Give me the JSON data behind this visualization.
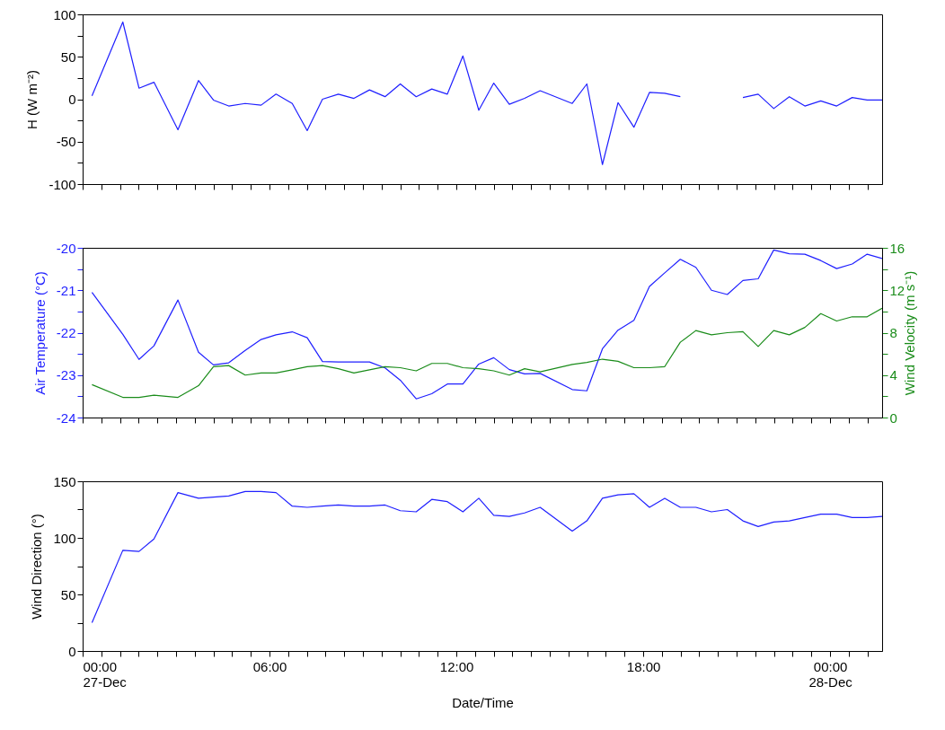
{
  "chart_data": [
    {
      "type": "line",
      "ylabel": "H (W m⁻²)",
      "tick_labels": "y",
      "x": [
        0.3,
        1.29,
        1.81,
        2.29,
        3.06,
        3.72,
        4.2,
        4.69,
        5.22,
        5.73,
        6.21,
        6.73,
        7.21,
        7.7,
        8.21,
        8.71,
        9.21,
        9.71,
        10.2,
        10.71,
        11.21,
        11.71,
        12.21,
        12.72,
        13.2,
        13.7,
        14.19,
        14.69,
        15.72,
        16.19,
        16.69,
        17.19,
        17.7,
        18.2,
        18.69,
        19.19,
        19.69,
        20.19,
        20.7,
        21.2,
        21.69,
        22.19,
        22.69,
        23.19,
        23.7,
        24.21,
        24.71,
        25.19,
        25.67
      ],
      "series": [
        {
          "color": "#1f1fff",
          "line_style": "solid",
          "values": [
            4,
            91,
            13,
            20,
            -36,
            22,
            -1,
            -8,
            -5,
            -7,
            6,
            -5,
            -37,
            0,
            6,
            1,
            11,
            3,
            18,
            3,
            12,
            6,
            51,
            -13,
            19,
            -6,
            1,
            10,
            -5,
            18,
            -77,
            -4,
            -33,
            8,
            7,
            3,
            null,
            null,
            null,
            2,
            6,
            -11,
            3,
            -8,
            -2,
            -8,
            2,
            -1,
            -1
          ]
        }
      ],
      "xlim": [
        0,
        25.67
      ],
      "xticks": [
        {
          "value": 0,
          "label": null
        },
        {
          "value": 0.6,
          "label": null
        },
        {
          "value": 1.2,
          "label": null
        },
        {
          "value": 1.8,
          "label": null
        },
        {
          "value": 2.4,
          "label": null
        },
        {
          "value": 3,
          "label": null
        },
        {
          "value": 3.6,
          "label": null
        },
        {
          "value": 4.2,
          "label": null
        },
        {
          "value": 4.8,
          "label": null
        },
        {
          "value": 5.4,
          "label": null
        },
        {
          "value": 6,
          "label": null
        },
        {
          "value": 6.6,
          "label": null
        },
        {
          "value": 7.2,
          "label": null
        },
        {
          "value": 7.8,
          "label": null
        },
        {
          "value": 8.4,
          "label": null
        },
        {
          "value": 9,
          "label": null
        },
        {
          "value": 9.6,
          "label": null
        },
        {
          "value": 10.2,
          "label": null
        },
        {
          "value": 10.8,
          "label": null
        },
        {
          "value": 11.4,
          "label": null
        },
        {
          "value": 12,
          "label": null
        },
        {
          "value": 12.6,
          "label": null
        },
        {
          "value": 13.2,
          "label": null
        },
        {
          "value": 13.8,
          "label": null
        },
        {
          "value": 14.4,
          "label": null
        },
        {
          "value": 15,
          "label": null
        },
        {
          "value": 15.6,
          "label": null
        },
        {
          "value": 16.2,
          "label": null
        },
        {
          "value": 16.8,
          "label": null
        },
        {
          "value": 17.4,
          "label": null
        },
        {
          "value": 18,
          "label": null
        },
        {
          "value": 18.6,
          "label": null
        },
        {
          "value": 19.2,
          "label": null
        },
        {
          "value": 19.8,
          "label": null
        },
        {
          "value": 20.4,
          "label": null
        },
        {
          "value": 21,
          "label": null
        },
        {
          "value": 21.6,
          "label": null
        },
        {
          "value": 22.2,
          "label": null
        },
        {
          "value": 22.8,
          "label": null
        },
        {
          "value": 23.4,
          "label": null
        },
        {
          "value": 24,
          "label": null
        },
        {
          "value": 24.6,
          "label": null
        },
        {
          "value": 25.2,
          "label": null
        }
      ],
      "ylim": [
        -100,
        100
      ],
      "yticks": [
        -100,
        {
          "value": -75,
          "label": null
        },
        -50,
        {
          "value": -25,
          "label": null
        },
        0,
        {
          "value": 25,
          "label": null
        },
        50,
        {
          "value": 75,
          "label": null
        },
        100
      ]
    },
    {
      "type": "line",
      "ylabel": "Air Temperature (°C)",
      "y2label": "Wind Velocity (m s⁻¹)",
      "tick_labels": "y",
      "x": [
        0.3,
        1.29,
        1.81,
        2.29,
        3.06,
        3.72,
        4.2,
        4.69,
        5.22,
        5.73,
        6.21,
        6.73,
        7.21,
        7.7,
        8.21,
        8.71,
        9.21,
        9.71,
        10.2,
        10.71,
        11.21,
        11.71,
        12.21,
        12.72,
        13.2,
        13.7,
        14.19,
        14.69,
        15.72,
        16.19,
        16.69,
        17.19,
        17.7,
        18.2,
        18.69,
        19.19,
        19.69,
        20.19,
        20.7,
        21.2,
        21.69,
        22.19,
        22.69,
        23.19,
        23.7,
        24.21,
        24.71,
        25.19,
        25.67
      ],
      "series": [
        {
          "color": "#1f1fff",
          "line_style": "solid",
          "values": [
            -21.05,
            -22.04,
            -22.63,
            -22.31,
            -21.23,
            -22.46,
            -22.76,
            -22.71,
            -22.42,
            -22.16,
            -22.05,
            -21.98,
            -22.12,
            -22.68,
            -22.69,
            -22.69,
            -22.69,
            -22.83,
            -23.12,
            -23.56,
            -23.44,
            -23.21,
            -23.21,
            -22.74,
            -22.59,
            -22.87,
            -22.97,
            -22.96,
            -23.34,
            -23.37,
            -22.38,
            -21.94,
            -21.71,
            -20.91,
            -20.59,
            -20.27,
            -20.46,
            -21.0,
            -21.1,
            -20.77,
            -20.73,
            -20.05,
            -20.14,
            -20.15,
            -20.3,
            -20.49,
            -20.38,
            -20.15,
            -20.25
          ]
        },
        {
          "color": "#1a8c1a",
          "axis": "y2",
          "line_style": "solid",
          "values": [
            3.1,
            1.9,
            1.9,
            2.1,
            1.9,
            3.0,
            4.8,
            4.9,
            4.0,
            4.2,
            4.2,
            4.5,
            4.8,
            4.9,
            4.6,
            4.2,
            4.5,
            4.8,
            4.7,
            4.4,
            5.1,
            5.1,
            4.7,
            4.6,
            4.4,
            4.0,
            4.6,
            4.3,
            5.0,
            5.2,
            5.5,
            5.3,
            4.7,
            4.7,
            4.8,
            7.1,
            8.2,
            7.8,
            8.0,
            8.1,
            6.7,
            8.2,
            7.8,
            8.5,
            9.8,
            9.1,
            9.5,
            9.5,
            10.3
          ]
        }
      ],
      "xlim": [
        0,
        25.67
      ],
      "xticks": [
        {
          "value": 0,
          "label": null
        },
        {
          "value": 0.6,
          "label": null
        },
        {
          "value": 1.2,
          "label": null
        },
        {
          "value": 1.8,
          "label": null
        },
        {
          "value": 2.4,
          "label": null
        },
        {
          "value": 3,
          "label": null
        },
        {
          "value": 3.6,
          "label": null
        },
        {
          "value": 4.2,
          "label": null
        },
        {
          "value": 4.8,
          "label": null
        },
        {
          "value": 5.4,
          "label": null
        },
        {
          "value": 6,
          "label": null
        },
        {
          "value": 6.6,
          "label": null
        },
        {
          "value": 7.2,
          "label": null
        },
        {
          "value": 7.8,
          "label": null
        },
        {
          "value": 8.4,
          "label": null
        },
        {
          "value": 9,
          "label": null
        },
        {
          "value": 9.6,
          "label": null
        },
        {
          "value": 10.2,
          "label": null
        },
        {
          "value": 10.8,
          "label": null
        },
        {
          "value": 11.4,
          "label": null
        },
        {
          "value": 12,
          "label": null
        },
        {
          "value": 12.6,
          "label": null
        },
        {
          "value": 13.2,
          "label": null
        },
        {
          "value": 13.8,
          "label": null
        },
        {
          "value": 14.4,
          "label": null
        },
        {
          "value": 15,
          "label": null
        },
        {
          "value": 15.6,
          "label": null
        },
        {
          "value": 16.2,
          "label": null
        },
        {
          "value": 16.8,
          "label": null
        },
        {
          "value": 17.4,
          "label": null
        },
        {
          "value": 18,
          "label": null
        },
        {
          "value": 18.6,
          "label": null
        },
        {
          "value": 19.2,
          "label": null
        },
        {
          "value": 19.8,
          "label": null
        },
        {
          "value": 20.4,
          "label": null
        },
        {
          "value": 21,
          "label": null
        },
        {
          "value": 21.6,
          "label": null
        },
        {
          "value": 22.2,
          "label": null
        },
        {
          "value": 22.8,
          "label": null
        },
        {
          "value": 23.4,
          "label": null
        },
        {
          "value": 24,
          "label": null
        },
        {
          "value": 24.6,
          "label": null
        },
        {
          "value": 25.2,
          "label": null
        }
      ],
      "ylim": [
        -24,
        -20
      ],
      "yticks": [
        -24,
        {
          "value": -23.5,
          "label": null
        },
        -23,
        {
          "value": -22.5,
          "label": null
        },
        -22,
        {
          "value": -21.5,
          "label": null
        },
        -21,
        {
          "value": -20.5,
          "label": null
        },
        -20
      ],
      "y2lim": [
        0,
        16
      ],
      "y2ticks": [
        0,
        {
          "value": 2,
          "label": null
        },
        4,
        {
          "value": 6,
          "label": null
        },
        8,
        {
          "value": 10,
          "label": null
        },
        12,
        {
          "value": 14,
          "label": null
        },
        16
      ]
    },
    {
      "type": "line",
      "ylabel": "Wind Direction (°)",
      "xlabel": "Date/Time",
      "x": [
        0.3,
        1.29,
        1.81,
        2.29,
        3.06,
        3.72,
        4.2,
        4.69,
        5.22,
        5.73,
        6.21,
        6.73,
        7.21,
        7.7,
        8.21,
        8.71,
        9.21,
        9.71,
        10.2,
        10.71,
        11.21,
        11.71,
        12.21,
        12.72,
        13.2,
        13.7,
        14.19,
        14.69,
        15.72,
        16.19,
        16.69,
        17.19,
        17.7,
        18.2,
        18.69,
        19.19,
        19.69,
        20.19,
        20.7,
        21.2,
        21.69,
        22.19,
        22.69,
        23.19,
        23.7,
        24.21,
        24.71,
        25.19,
        25.67
      ],
      "series": [
        {
          "color": "#1f1fff",
          "line_style": "solid",
          "values": [
            25,
            89,
            88,
            99,
            140,
            135,
            136,
            137,
            141,
            141,
            140,
            128,
            127,
            128,
            129,
            128,
            128,
            129,
            124,
            123,
            134,
            132,
            123,
            135,
            120,
            119,
            122,
            127,
            106,
            115,
            135,
            138,
            139,
            127,
            135,
            127,
            127,
            123,
            125,
            115,
            110,
            114,
            115,
            118,
            121,
            121,
            118,
            118,
            119
          ]
        }
      ],
      "xlim": [
        0,
        25.67
      ],
      "xticks": [
        {
          "value": 0,
          "label": "00:00\n27-Dec"
        },
        {
          "value": 0.6,
          "label": null
        },
        {
          "value": 1.2,
          "label": null
        },
        {
          "value": 1.8,
          "label": null
        },
        {
          "value": 2.4,
          "label": null
        },
        {
          "value": 3,
          "label": null
        },
        {
          "value": 3.6,
          "label": null
        },
        {
          "value": 4.2,
          "label": null
        },
        {
          "value": 4.8,
          "label": null
        },
        {
          "value": 5.4,
          "label": null
        },
        {
          "value": 6,
          "label": "06:00"
        },
        {
          "value": 6.6,
          "label": null
        },
        {
          "value": 7.2,
          "label": null
        },
        {
          "value": 7.8,
          "label": null
        },
        {
          "value": 8.4,
          "label": null
        },
        {
          "value": 9,
          "label": null
        },
        {
          "value": 9.6,
          "label": null
        },
        {
          "value": 10.2,
          "label": null
        },
        {
          "value": 10.8,
          "label": null
        },
        {
          "value": 11.4,
          "label": null
        },
        {
          "value": 12,
          "label": "12:00"
        },
        {
          "value": 12.6,
          "label": null
        },
        {
          "value": 13.2,
          "label": null
        },
        {
          "value": 13.8,
          "label": null
        },
        {
          "value": 14.4,
          "label": null
        },
        {
          "value": 15,
          "label": null
        },
        {
          "value": 15.6,
          "label": null
        },
        {
          "value": 16.2,
          "label": null
        },
        {
          "value": 16.8,
          "label": null
        },
        {
          "value": 17.4,
          "label": null
        },
        {
          "value": 18,
          "label": "18:00"
        },
        {
          "value": 18.6,
          "label": null
        },
        {
          "value": 19.2,
          "label": null
        },
        {
          "value": 19.8,
          "label": null
        },
        {
          "value": 20.4,
          "label": null
        },
        {
          "value": 21,
          "label": null
        },
        {
          "value": 21.6,
          "label": null
        },
        {
          "value": 22.2,
          "label": null
        },
        {
          "value": 22.8,
          "label": null
        },
        {
          "value": 23.4,
          "label": null
        },
        {
          "value": 24,
          "label": "00:00\n28-Dec"
        },
        {
          "value": 24.6,
          "label": null
        },
        {
          "value": 25.2,
          "label": null
        }
      ],
      "ylim": [
        0,
        150
      ],
      "yticks": [
        0,
        {
          "value": 25,
          "label": null
        },
        50,
        {
          "value": 75,
          "label": null
        },
        100,
        {
          "value": 125,
          "label": null
        },
        150
      ]
    }
  ]
}
